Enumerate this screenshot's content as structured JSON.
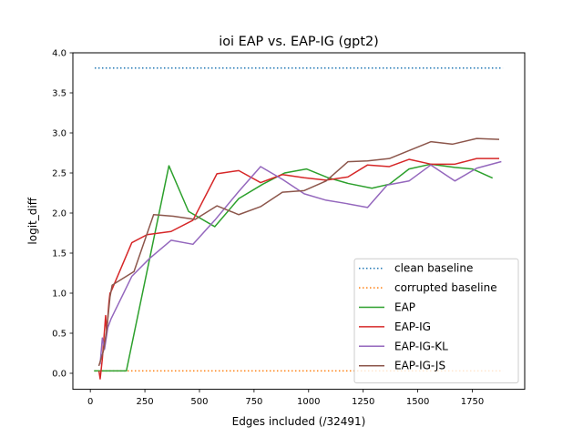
{
  "chart_data": {
    "type": "line",
    "title": "ioi EAP vs. EAP-IG (gpt2)",
    "xlabel": "Edges included (/32491)",
    "ylabel": "logit_diff",
    "xlim": [
      -80,
      1990
    ],
    "ylim": [
      -0.2,
      4.0
    ],
    "xticks": [
      0,
      250,
      500,
      750,
      1000,
      1250,
      1500,
      1750
    ],
    "yticks": [
      0.0,
      0.5,
      1.0,
      1.5,
      2.0,
      2.5,
      3.0,
      3.5,
      4.0
    ],
    "xtick_labels": [
      "0",
      "250",
      "500",
      "750",
      "1000",
      "1250",
      "1500",
      "1750"
    ],
    "ytick_labels": [
      "0.0",
      "0.5",
      "1.0",
      "1.5",
      "2.0",
      "2.5",
      "3.0",
      "3.5",
      "4.0"
    ],
    "grid": false,
    "legend_position": "lower-right",
    "series": [
      {
        "name": "clean baseline",
        "color": "#1f77b4",
        "style": "dotted",
        "x": [
          20,
          1890
        ],
        "y": [
          3.81,
          3.81
        ]
      },
      {
        "name": "corrupted baseline",
        "color": "#ff7f0e",
        "style": "dotted",
        "x": [
          20,
          1890
        ],
        "y": [
          0.03,
          0.03
        ]
      },
      {
        "name": "EAP",
        "color": "#2ca02c",
        "style": "solid",
        "x": [
          20,
          165,
          360,
          450,
          570,
          680,
          790,
          890,
          990,
          1090,
          1180,
          1290,
          1370,
          1460,
          1560,
          1670,
          1750,
          1840
        ],
        "y": [
          0.03,
          0.03,
          2.59,
          2.02,
          1.83,
          2.18,
          2.36,
          2.5,
          2.55,
          2.44,
          2.37,
          2.31,
          2.36,
          2.55,
          2.61,
          2.57,
          2.55,
          2.44
        ]
      },
      {
        "name": "EAP-IG",
        "color": "#d62728",
        "style": "solid",
        "x": [
          40,
          45,
          55,
          70,
          75,
          80,
          85,
          90,
          95,
          190,
          260,
          370,
          470,
          580,
          680,
          780,
          880,
          980,
          1080,
          1180,
          1270,
          1370,
          1460,
          1560,
          1670,
          1770,
          1870
        ],
        "y": [
          0.02,
          -0.07,
          0.18,
          0.72,
          0.5,
          0.7,
          0.88,
          1.0,
          1.02,
          1.63,
          1.73,
          1.77,
          1.91,
          2.49,
          2.53,
          2.38,
          2.48,
          2.44,
          2.41,
          2.45,
          2.6,
          2.58,
          2.67,
          2.61,
          2.61,
          2.68,
          2.68
        ]
      },
      {
        "name": "EAP-IG-KL",
        "color": "#9467bd",
        "style": "solid",
        "x": [
          45,
          55,
          65,
          80,
          95,
          190,
          270,
          370,
          470,
          570,
          680,
          780,
          880,
          980,
          1080,
          1170,
          1270,
          1360,
          1460,
          1560,
          1670,
          1770,
          1880
        ],
        "y": [
          0.12,
          0.44,
          0.3,
          0.57,
          0.68,
          1.21,
          1.43,
          1.66,
          1.61,
          1.91,
          2.27,
          2.58,
          2.42,
          2.24,
          2.16,
          2.12,
          2.07,
          2.35,
          2.4,
          2.6,
          2.4,
          2.56,
          2.64
        ]
      },
      {
        "name": "EAP-IG-JS",
        "color": "#8c564b",
        "style": "solid",
        "x": [
          40,
          60,
          75,
          90,
          100,
          200,
          290,
          380,
          480,
          580,
          680,
          780,
          880,
          980,
          1080,
          1180,
          1270,
          1370,
          1470,
          1560,
          1660,
          1770,
          1870
        ],
        "y": [
          0.1,
          0.28,
          0.54,
          0.95,
          1.1,
          1.27,
          1.98,
          1.96,
          1.92,
          2.09,
          1.98,
          2.08,
          2.26,
          2.28,
          2.4,
          2.64,
          2.65,
          2.68,
          2.79,
          2.89,
          2.86,
          2.93,
          2.92
        ]
      }
    ]
  }
}
